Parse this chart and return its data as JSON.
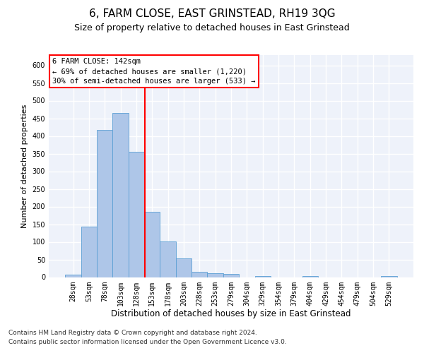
{
  "title": "6, FARM CLOSE, EAST GRINSTEAD, RH19 3QG",
  "subtitle": "Size of property relative to detached houses in East Grinstead",
  "xlabel": "Distribution of detached houses by size in East Grinstead",
  "ylabel": "Number of detached properties",
  "bar_labels": [
    "28sqm",
    "53sqm",
    "78sqm",
    "103sqm",
    "128sqm",
    "153sqm",
    "178sqm",
    "203sqm",
    "228sqm",
    "253sqm",
    "279sqm",
    "304sqm",
    "329sqm",
    "354sqm",
    "379sqm",
    "404sqm",
    "429sqm",
    "454sqm",
    "479sqm",
    "504sqm",
    "529sqm"
  ],
  "bar_values": [
    8,
    143,
    417,
    465,
    355,
    185,
    102,
    53,
    15,
    12,
    9,
    0,
    4,
    0,
    0,
    3,
    0,
    0,
    0,
    0,
    4
  ],
  "bar_color": "#aec6e8",
  "bar_edge_color": "#5a9fd4",
  "red_line_x": 4.55,
  "ylim": [
    0,
    630
  ],
  "yticks": [
    0,
    50,
    100,
    150,
    200,
    250,
    300,
    350,
    400,
    450,
    500,
    550,
    600
  ],
  "annotation_title": "6 FARM CLOSE: 142sqm",
  "annotation_line1": "← 69% of detached houses are smaller (1,220)",
  "annotation_line2": "30% of semi-detached houses are larger (533) →",
  "footnote1": "Contains HM Land Registry data © Crown copyright and database right 2024.",
  "footnote2": "Contains public sector information licensed under the Open Government Licence v3.0.",
  "bg_color": "#eef2fa",
  "grid_color": "#ffffff",
  "fig_bg_color": "#ffffff",
  "title_fontsize": 11,
  "subtitle_fontsize": 9,
  "xlabel_fontsize": 8.5,
  "ylabel_fontsize": 8,
  "tick_fontsize": 7,
  "annot_fontsize": 7.5,
  "footnote_fontsize": 6.5
}
